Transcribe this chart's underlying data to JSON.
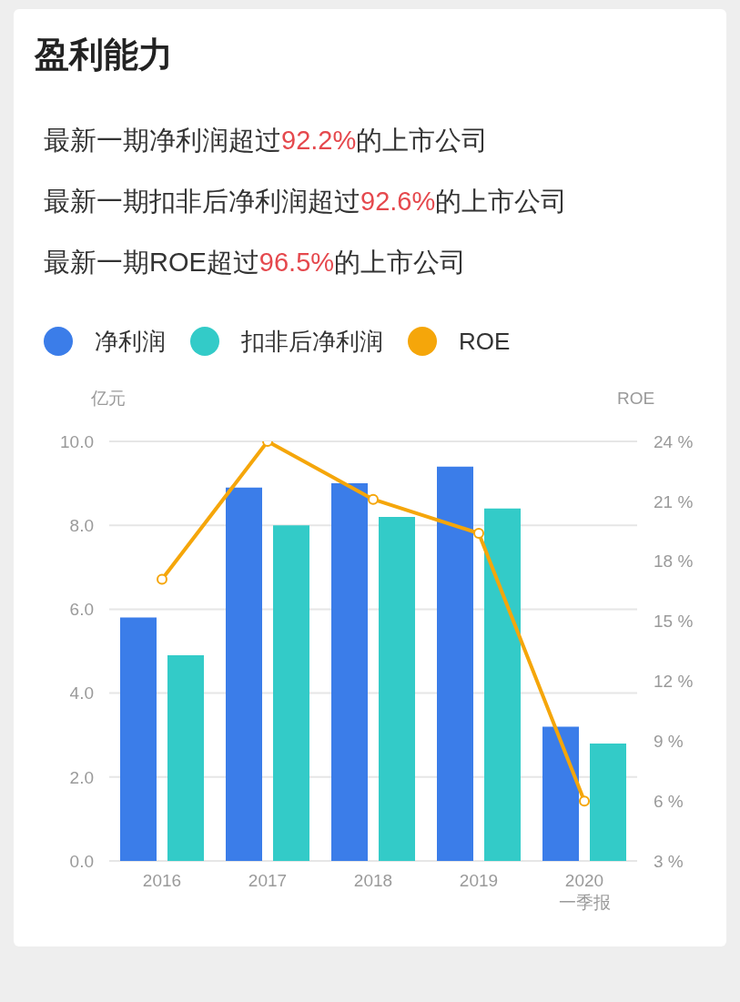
{
  "chart_data": {
    "type": "bar",
    "title": "盈利能力",
    "annotations": [
      "最新一期净利润超过92.2%的上市公司",
      "最新一期扣非后净利润超过92.6%的上市公司",
      "最新一期ROE超过96.5%的上市公司"
    ],
    "categories": [
      "2016",
      "2017",
      "2018",
      "2019",
      "2020\n一季报"
    ],
    "series": [
      {
        "name": "净利润",
        "color": "#3b7de9",
        "values": [
          5.8,
          8.9,
          9.0,
          9.4,
          3.2
        ]
      },
      {
        "name": "扣非后净利润",
        "color": "#33cbc8",
        "values": [
          4.9,
          8.0,
          8.2,
          8.4,
          2.8
        ]
      },
      {
        "name": "ROE",
        "type": "line",
        "axis": "y2",
        "color": "#f5a60a",
        "values": [
          17.1,
          24.0,
          21.1,
          19.4,
          6.0
        ]
      }
    ],
    "ylabel": "亿元",
    "y2label": "ROE",
    "ylim": [
      0,
      10
    ],
    "yticks": [
      {
        "value": 0,
        "label": "0.0"
      },
      {
        "value": 2,
        "label": "2.0"
      },
      {
        "value": 4,
        "label": "4.0"
      },
      {
        "value": 6,
        "label": "6.0"
      },
      {
        "value": 8,
        "label": "8.0"
      },
      {
        "value": 10,
        "label": "10.0"
      }
    ],
    "y2lim": [
      3,
      24
    ],
    "y2ticks": [
      {
        "value": 3,
        "label": "3 %"
      },
      {
        "value": 6,
        "label": "6 %"
      },
      {
        "value": 9,
        "label": "9 %"
      },
      {
        "value": 12,
        "label": "12 %"
      },
      {
        "value": 15,
        "label": "15 %"
      },
      {
        "value": 18,
        "label": "18 %"
      },
      {
        "value": 21,
        "label": "21 %"
      },
      {
        "value": 24,
        "label": "24 %"
      }
    ],
    "grid": "y",
    "legend": "top left",
    "marker": "circle",
    "line_style": "solid"
  }
}
